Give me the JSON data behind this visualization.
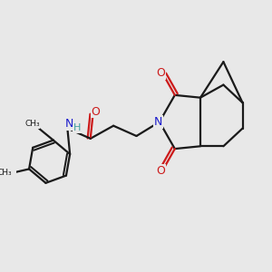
{
  "bg_color": "#e8e8e8",
  "bond_color": "#1a1a1a",
  "N_color": "#1a1acc",
  "O_color": "#cc1a1a",
  "H_color": "#40a0a0",
  "line_width": 1.6,
  "figsize": [
    3.0,
    3.0
  ],
  "dpi": 100,
  "xlim": [
    0,
    10
  ],
  "ylim": [
    0,
    10
  ]
}
